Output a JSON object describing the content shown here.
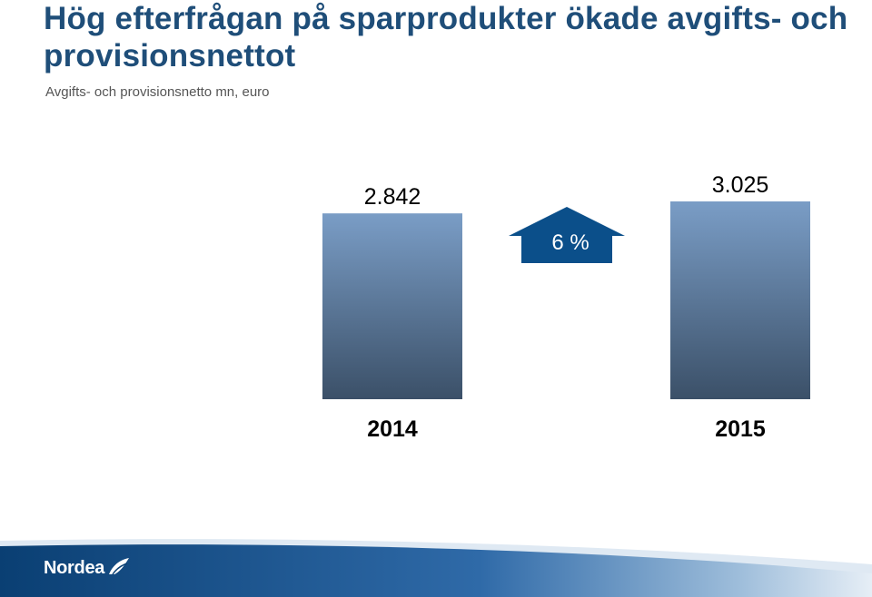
{
  "slide": {
    "title": "Hög efterfrågan på sparprodukter ökade avgifts- och provisionsnettot",
    "subtitle": "Avgifts- och provisionsnetto mn, euro",
    "logo_text": "Nordea"
  },
  "chart_data": {
    "type": "bar",
    "title": "",
    "xlabel": "",
    "ylabel": "",
    "categories": [
      "2014",
      "2015"
    ],
    "values": [
      2842,
      3025
    ],
    "value_labels": [
      "2.842",
      "3.025"
    ],
    "ylim": [
      0,
      3025
    ],
    "grid": false,
    "legend": "none",
    "change_label": "6 %"
  },
  "colors": {
    "title": "#1f4e79",
    "bar_top": "#7a9dc6",
    "bar_bottom": "#3b5068",
    "arrow": "#0b4f8a",
    "footer_dark": "#0a3f73",
    "footer_light": "#e6eef6"
  }
}
